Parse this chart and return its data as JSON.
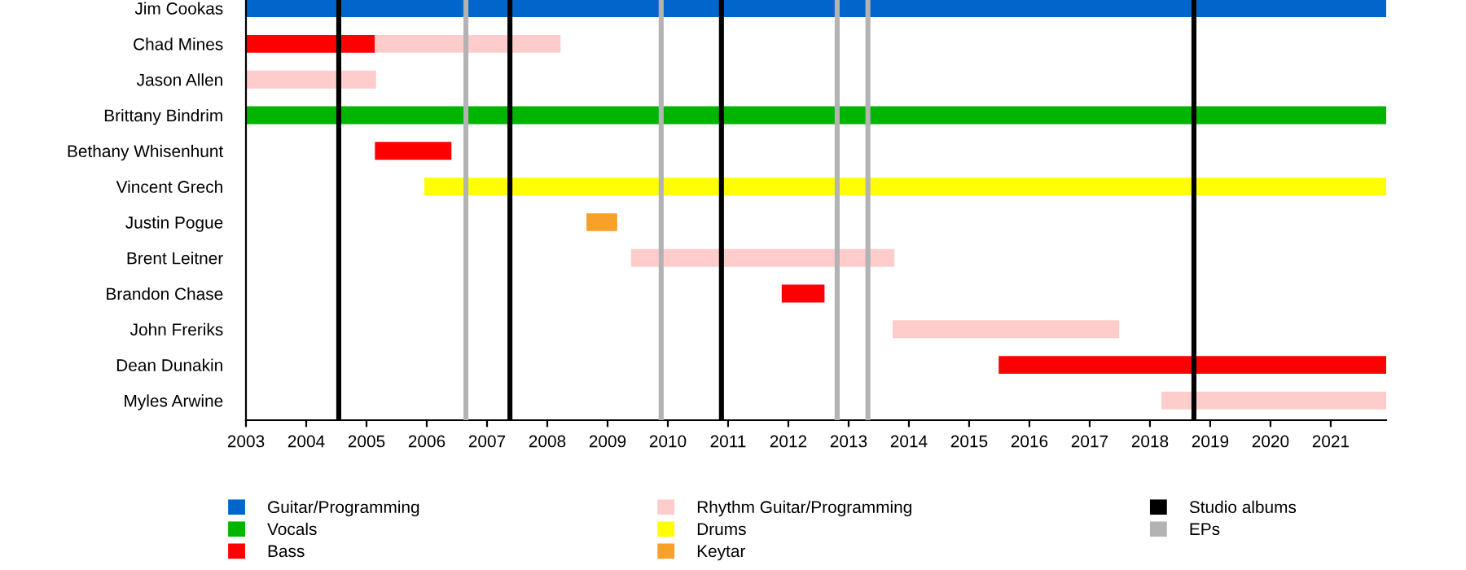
{
  "chart_data": {
    "type": "bar",
    "orientation": "horizontal",
    "categories": [
      "Jim Cookas",
      "Chad Mines",
      "Jason Allen",
      "Brittany Bindrim",
      "Bethany Whisenhunt",
      "Vincent Grech",
      "Justin Pogue",
      "Brent Leitner",
      "Brandon Chase",
      "John Freriks",
      "Dean Dunakin",
      "Myles Arwine"
    ],
    "series": [
      {
        "name": "Guitar/Programming",
        "color": "#0066cc",
        "base": [
          2003,
          null,
          null,
          null,
          null,
          null,
          null,
          null,
          null,
          null,
          null,
          null
        ],
        "values": [
          18.92,
          null,
          null,
          null,
          null,
          null,
          null,
          null,
          null,
          null,
          null,
          null
        ]
      },
      {
        "name": "Vocals",
        "color": "#00b400",
        "base": [
          null,
          null,
          null,
          2003,
          null,
          null,
          null,
          null,
          null,
          null,
          null,
          null
        ],
        "values": [
          null,
          null,
          null,
          18.92,
          null,
          null,
          null,
          null,
          null,
          null,
          null,
          null
        ]
      },
      {
        "name": "Bass",
        "color": "#ff0000",
        "base": [
          null,
          2003,
          null,
          null,
          2005.14,
          null,
          null,
          null,
          2011.89,
          null,
          2015.49,
          null
        ],
        "values": [
          null,
          2.14,
          null,
          null,
          1.27,
          null,
          null,
          null,
          0.71,
          null,
          6.43,
          null
        ]
      },
      {
        "name": "Rhythm Guitar/Programming",
        "color": "#ffcccc",
        "base": [
          null,
          2005.14,
          2003,
          null,
          null,
          null,
          null,
          2009.39,
          null,
          2013.73,
          null,
          2018.19
        ],
        "values": [
          null,
          3.08,
          2.16,
          null,
          null,
          null,
          null,
          4.37,
          null,
          3.76,
          null,
          3.73
        ]
      },
      {
        "name": "Drums",
        "color": "#ffff00",
        "base": [
          null,
          null,
          null,
          null,
          null,
          2005.96,
          null,
          null,
          null,
          null,
          null,
          null
        ],
        "values": [
          null,
          null,
          null,
          null,
          null,
          15.96,
          null,
          null,
          null,
          null,
          null,
          null
        ]
      },
      {
        "name": "Keytar",
        "color": "#f7a02a",
        "base": [
          null,
          null,
          null,
          null,
          null,
          null,
          2008.65,
          null,
          null,
          null,
          null,
          null
        ],
        "values": [
          null,
          null,
          null,
          null,
          null,
          null,
          0.51,
          null,
          null,
          null,
          null,
          null
        ]
      }
    ],
    "ref_lines": [
      {
        "axis": "x",
        "value": 2004.54,
        "label": "Studio albums",
        "color": "#000000"
      },
      {
        "axis": "x",
        "value": 2007.38,
        "color": "#000000"
      },
      {
        "axis": "x",
        "value": 2010.89,
        "color": "#000000"
      },
      {
        "axis": "x",
        "value": 2018.73,
        "color": "#000000"
      },
      {
        "axis": "x",
        "value": 2006.65,
        "label": "EPs",
        "color": "#b3b3b3"
      },
      {
        "axis": "x",
        "value": 2009.89,
        "color": "#b3b3b3"
      },
      {
        "axis": "x",
        "value": 2012.81,
        "color": "#b3b3b3"
      },
      {
        "axis": "x",
        "value": 2013.32,
        "color": "#b3b3b3"
      }
    ],
    "xlim": [
      2003,
      2021.92
    ],
    "xticks": [
      2003,
      2004,
      2005,
      2006,
      2007,
      2008,
      2009,
      2010,
      2011,
      2012,
      2013,
      2014,
      2015,
      2016,
      2017,
      2018,
      2019,
      2020,
      2021
    ],
    "grid": false,
    "legend": "bottom"
  }
}
